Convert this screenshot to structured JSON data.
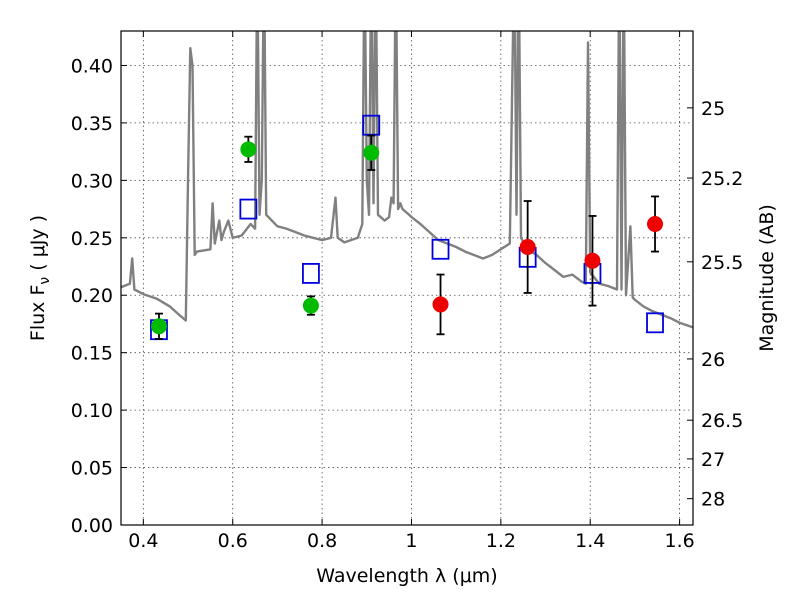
{
  "chart_data": {
    "type": "scatter",
    "title": "",
    "xlabel": "Wavelength  λ (μm)",
    "ylabel": "Flux  F",
    "ylabel_subscript": "ν",
    "ylabel_unit": " ( μJy )",
    "y2label": "Magnitude (AB)",
    "xlim": [
      0.35,
      1.63
    ],
    "ylim": [
      0.0,
      0.43
    ],
    "grid": true,
    "x_ticks": [
      0.4,
      0.6,
      0.8,
      1.0,
      1.2,
      1.4,
      1.6
    ],
    "x_tick_labels": [
      "0.4",
      "0.6",
      "0.8",
      "1",
      "1.2",
      "1.4",
      "1.6"
    ],
    "y_ticks": [
      0.0,
      0.05,
      0.1,
      0.15,
      0.2,
      0.25,
      0.3,
      0.35,
      0.4
    ],
    "y_tick_labels": [
      "0.00",
      "0.05",
      "0.10",
      "0.15",
      "0.20",
      "0.25",
      "0.30",
      "0.35",
      "0.40"
    ],
    "y2_ticks": [
      {
        "label": "25",
        "value": 25.0
      },
      {
        "label": "25.2",
        "value": 25.2
      },
      {
        "label": "25.5",
        "value": 25.5
      },
      {
        "label": "26",
        "value": 26.0
      },
      {
        "label": "26.5",
        "value": 26.5
      },
      {
        "label": "27",
        "value": 27.0
      },
      {
        "label": "28",
        "value": 28.0
      }
    ],
    "colors": {
      "model": "#808080",
      "green": "#00bb00",
      "red": "#ee0000",
      "squares": "#0000dd",
      "errorbar": "#000000"
    },
    "series": [
      {
        "kind": "line",
        "points": [
          [
            0.35,
            0.207
          ],
          [
            0.37,
            0.21
          ],
          [
            0.375,
            0.232
          ],
          [
            0.38,
            0.205
          ],
          [
            0.4,
            0.201
          ],
          [
            0.43,
            0.197
          ],
          [
            0.46,
            0.19
          ],
          [
            0.48,
            0.183
          ],
          [
            0.495,
            0.178
          ],
          [
            0.5,
            0.3
          ],
          [
            0.505,
            0.415
          ],
          [
            0.51,
            0.4
          ],
          [
            0.515,
            0.235
          ],
          [
            0.52,
            0.238
          ],
          [
            0.55,
            0.24
          ],
          [
            0.555,
            0.28
          ],
          [
            0.56,
            0.245
          ],
          [
            0.57,
            0.265
          ],
          [
            0.575,
            0.248
          ],
          [
            0.58,
            0.255
          ],
          [
            0.59,
            0.265
          ],
          [
            0.6,
            0.25
          ],
          [
            0.62,
            0.252
          ],
          [
            0.64,
            0.262
          ],
          [
            0.65,
            0.258
          ],
          [
            0.655,
            0.5
          ],
          [
            0.66,
            0.27
          ],
          [
            0.665,
            0.3
          ],
          [
            0.67,
            0.5
          ],
          [
            0.675,
            0.27
          ],
          [
            0.68,
            0.268
          ],
          [
            0.7,
            0.26
          ],
          [
            0.72,
            0.258
          ],
          [
            0.74,
            0.255
          ],
          [
            0.76,
            0.252
          ],
          [
            0.78,
            0.25
          ],
          [
            0.8,
            0.248
          ],
          [
            0.82,
            0.25
          ],
          [
            0.83,
            0.285
          ],
          [
            0.835,
            0.25
          ],
          [
            0.85,
            0.246
          ],
          [
            0.88,
            0.25
          ],
          [
            0.89,
            0.262
          ],
          [
            0.895,
            0.5
          ],
          [
            0.9,
            0.3
          ],
          [
            0.905,
            0.27
          ],
          [
            0.91,
            0.5
          ],
          [
            0.915,
            0.28
          ],
          [
            0.92,
            0.5
          ],
          [
            0.925,
            0.27
          ],
          [
            0.94,
            0.265
          ],
          [
            0.95,
            0.268
          ],
          [
            0.955,
            0.285
          ],
          [
            0.96,
            0.28
          ],
          [
            0.965,
            0.5
          ],
          [
            0.97,
            0.275
          ],
          [
            0.975,
            0.28
          ],
          [
            0.98,
            0.275
          ],
          [
            0.995,
            0.27
          ],
          [
            1.0,
            0.268
          ],
          [
            1.02,
            0.262
          ],
          [
            1.04,
            0.255
          ],
          [
            1.06,
            0.248
          ],
          [
            1.08,
            0.245
          ],
          [
            1.1,
            0.242
          ],
          [
            1.12,
            0.238
          ],
          [
            1.14,
            0.235
          ],
          [
            1.16,
            0.232
          ],
          [
            1.18,
            0.235
          ],
          [
            1.2,
            0.24
          ],
          [
            1.22,
            0.245
          ],
          [
            1.23,
            0.5
          ],
          [
            1.235,
            0.27
          ],
          [
            1.24,
            0.5
          ],
          [
            1.245,
            0.25
          ],
          [
            1.26,
            0.24
          ],
          [
            1.28,
            0.235
          ],
          [
            1.3,
            0.228
          ],
          [
            1.32,
            0.222
          ],
          [
            1.34,
            0.216
          ],
          [
            1.36,
            0.218
          ],
          [
            1.38,
            0.212
          ],
          [
            1.39,
            0.21
          ],
          [
            1.395,
            0.42
          ],
          [
            1.4,
            0.22
          ],
          [
            1.42,
            0.21
          ],
          [
            1.44,
            0.208
          ],
          [
            1.46,
            0.205
          ],
          [
            1.465,
            0.5
          ],
          [
            1.47,
            0.205
          ],
          [
            1.475,
            0.5
          ],
          [
            1.48,
            0.2
          ],
          [
            1.49,
            0.26
          ],
          [
            1.495,
            0.198
          ],
          [
            1.5,
            0.196
          ],
          [
            1.52,
            0.19
          ],
          [
            1.54,
            0.186
          ],
          [
            1.56,
            0.183
          ],
          [
            1.58,
            0.18
          ],
          [
            1.6,
            0.176
          ],
          [
            1.63,
            0.172
          ]
        ]
      },
      {
        "kind": "marker-square",
        "points": [
          [
            0.435,
            0.17
          ],
          [
            0.635,
            0.275
          ],
          [
            0.775,
            0.219
          ],
          [
            0.91,
            0.348
          ],
          [
            1.065,
            0.24
          ],
          [
            1.26,
            0.233
          ],
          [
            1.405,
            0.219
          ],
          [
            1.545,
            0.176
          ]
        ]
      },
      {
        "kind": "marker-circle",
        "color_key": "green",
        "points": [
          {
            "x": 0.435,
            "y": 0.173,
            "err": 0.011
          },
          {
            "x": 0.635,
            "y": 0.327,
            "err": 0.011
          },
          {
            "x": 0.775,
            "y": 0.191,
            "err": 0.008
          },
          {
            "x": 0.91,
            "y": 0.324,
            "err": 0.015
          }
        ]
      },
      {
        "kind": "marker-circle",
        "color_key": "red",
        "points": [
          {
            "x": 1.065,
            "y": 0.192,
            "err": 0.026
          },
          {
            "x": 1.26,
            "y": 0.242,
            "err": 0.04
          },
          {
            "x": 1.405,
            "y": 0.23,
            "err": 0.039
          },
          {
            "x": 1.545,
            "y": 0.262,
            "err": 0.024
          }
        ]
      }
    ]
  }
}
